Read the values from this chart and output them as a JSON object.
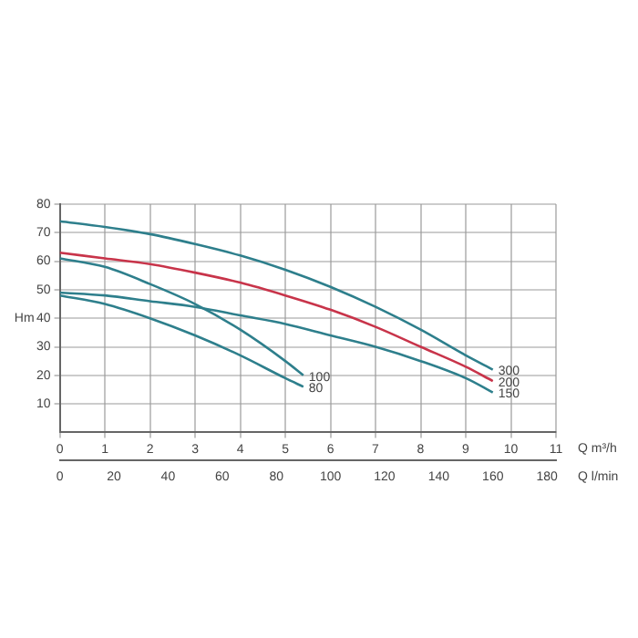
{
  "chart_data": {
    "type": "line",
    "xlabel": "Q m³/h",
    "ylabel": "Hm",
    "x2label": "Q l/min",
    "xlim": [
      0,
      11
    ],
    "xticks": [
      0,
      1,
      2,
      3,
      4,
      5,
      6,
      7,
      8,
      9,
      10,
      11
    ],
    "x2lim": [
      0,
      183.3
    ],
    "x2ticks": [
      0,
      20,
      40,
      60,
      80,
      100,
      120,
      140,
      160,
      180
    ],
    "ylim": [
      0,
      80
    ],
    "yticks": [
      10,
      20,
      30,
      40,
      50,
      60,
      70,
      80
    ],
    "grid": true,
    "legend": false,
    "marker": "none",
    "line_style": "solid",
    "series": [
      {
        "name": "300",
        "color": "#2e7f8c",
        "x": [
          0,
          1,
          2,
          3,
          4,
          5,
          6,
          7,
          8,
          9,
          9.6
        ],
        "values": [
          74,
          72,
          69.5,
          66,
          62,
          57,
          51,
          44,
          36,
          27,
          22
        ]
      },
      {
        "name": "200",
        "color": "#c8344a",
        "x": [
          0,
          1,
          2,
          3,
          4,
          5,
          6,
          7,
          8,
          9,
          9.6
        ],
        "values": [
          63,
          61,
          59,
          56,
          52.5,
          48,
          43,
          37,
          30,
          23,
          18
        ]
      },
      {
        "name": "150",
        "color": "#2e7f8c",
        "x": [
          0,
          1,
          2,
          3,
          4,
          5,
          6,
          7,
          8,
          9,
          9.6
        ],
        "values": [
          49,
          48,
          46,
          44,
          41,
          38,
          34,
          30,
          25,
          19,
          14
        ]
      },
      {
        "name": "100",
        "color": "#2e7f8c",
        "x": [
          0,
          1,
          2,
          3,
          4,
          5,
          5.4
        ],
        "values": [
          61,
          58,
          52,
          45,
          36,
          25,
          20
        ]
      },
      {
        "name": "80",
        "color": "#2e7f8c",
        "x": [
          0,
          1,
          2,
          3,
          4,
          5,
          5.4
        ],
        "values": [
          48,
          45,
          40,
          34,
          27,
          19,
          16
        ]
      }
    ]
  }
}
